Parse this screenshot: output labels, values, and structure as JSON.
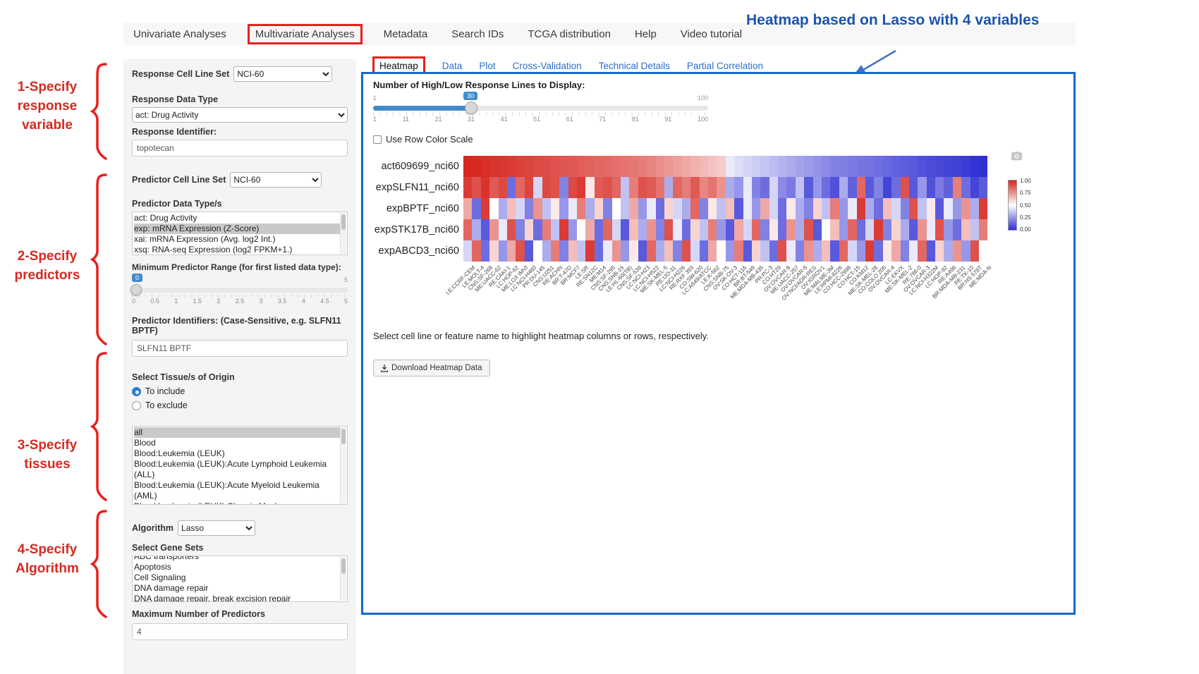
{
  "annotations": {
    "heatmap_note": "Heatmap based on Lasso with 4 variables",
    "step1": "1-Specify response variable",
    "step2": "2-Specify predictors",
    "step3": "3-Specify tissues",
    "step4": "4-Specify Algorithm"
  },
  "nav": {
    "tabs": [
      {
        "label": "Univariate Analyses",
        "highlighted": false
      },
      {
        "label": "Multivariate Analyses",
        "highlighted": true
      },
      {
        "label": "Metadata",
        "highlighted": false
      },
      {
        "label": "Search IDs",
        "highlighted": false
      },
      {
        "label": "TCGA distribution",
        "highlighted": false
      },
      {
        "label": "Help",
        "highlighted": false
      },
      {
        "label": "Video tutorial",
        "highlighted": false
      }
    ]
  },
  "sidebar": {
    "response_cell_line_set": {
      "label": "Response Cell Line Set",
      "value": "NCI-60"
    },
    "response_data_type": {
      "label": "Response Data Type",
      "value": "act: Drug Activity"
    },
    "response_identifier": {
      "label": "Response Identifier:",
      "value": "topotecan"
    },
    "predictor_cell_line_set": {
      "label": "Predictor Cell Line Set",
      "value": "NCI-60"
    },
    "predictor_data_types": {
      "label": "Predictor Data Type/s",
      "options": [
        "act: Drug Activity",
        "exp: mRNA Expression (Z-Score)",
        "xai: mRNA Expression (Avg. log2 Int.)",
        "xsq: RNA-seq Expression (log2 FPKM+1.)"
      ],
      "selected": "exp: mRNA Expression (Z-Score)"
    },
    "min_predictor_range": {
      "label": "Minimum Predictor Range (for first listed data type):",
      "value": "0",
      "max_label": "5",
      "ticks": [
        "0",
        "0.5",
        "1",
        "1.5",
        "2",
        "2.5",
        "3",
        "3.5",
        "4",
        "4.5",
        "5"
      ]
    },
    "predictor_identifiers": {
      "label": "Predictor Identifiers: (Case-Sensitive, e.g. SLFN11 BPTF)",
      "value": "SLFN11 BPTF"
    },
    "tissue_origin": {
      "label": "Select Tissue/s of Origin",
      "radios": [
        {
          "label": "To include",
          "checked": true
        },
        {
          "label": "To exclude",
          "checked": false
        }
      ],
      "options": [
        "all",
        "Blood",
        "Blood:Leukemia (LEUK)",
        "Blood:Leukemia (LEUK):Acute Lymphoid Leukemia (ALL)",
        "Blood:Leukemia (LEUK):Acute Myeloid Leukemia (AML)",
        "Blood:Leukemia (LEUK):Chronic Myelogenous Leukemia (CML)"
      ],
      "selected": "all"
    },
    "algorithm": {
      "label": "Algorithm",
      "value": "Lasso"
    },
    "gene_sets": {
      "label": "Select Gene Sets",
      "options": [
        "ABC transporters",
        "Apoptosis",
        "Cell Signaling",
        "DNA damage repair",
        "DNA damage repair, break excision repair"
      ]
    },
    "max_predictors": {
      "label": "Maximum Number of Predictors",
      "value": "4"
    }
  },
  "main": {
    "tabs": [
      {
        "label": "Heatmap",
        "active": true
      },
      {
        "label": "Data",
        "active": false
      },
      {
        "label": "Plot",
        "active": false
      },
      {
        "label": "Cross-Validation",
        "active": false
      },
      {
        "label": "Technical Details",
        "active": false
      },
      {
        "label": "Partial Correlation",
        "active": false
      }
    ],
    "lines_slider": {
      "label": "Number of High/Low Response Lines to Display:",
      "value": "30",
      "min_label": "1",
      "max_label": "100",
      "ticks": [
        "1",
        "11",
        "21",
        "31",
        "41",
        "51",
        "61",
        "71",
        "81",
        "91",
        "100"
      ]
    },
    "row_color_scale_label": "Use Row Color Scale",
    "hint": "Select cell line or feature name to highlight heatmap columns or rows, respectively.",
    "download_button": "Download Heatmap Data"
  },
  "chart_data": {
    "type": "heatmap",
    "rows": [
      "act609699_nci60",
      "expSLFN11_nci60",
      "expBPTF_nci60",
      "expSTK17B_nci60",
      "expABCD3_nci60"
    ],
    "columns": [
      "LE:CCRF-CEM",
      "LE:MOLT-4",
      "CNS:SF-268",
      "ME:UACC-62",
      "RE:CAKI-1",
      "LC:HOP-62",
      "ME:LOX IMVI",
      "LC:NCI-H460",
      "PR:DU-145",
      "CNS:U251",
      "RE:ACHN",
      "BR:T-47D",
      "BR:MCF7",
      "LE:SR",
      "RE:SN12C",
      "ME:M14",
      "CNS:SF-295",
      "CNS:SNB-19",
      "LE:HL-60(TB)",
      "CNS:SF-539",
      "LC:NCI-H23",
      "LC:NCI-H522",
      "ME:SK-MEL-5",
      "RE:UO-31",
      "LC:NCI-H226",
      "RE:RXF 393",
      "CO:SW-620",
      "LC:A549/ATCC",
      "LE:K-562",
      "CNS:SNB-75",
      "OV:SK-OV-3",
      "CO:HCT-116",
      "BR:BT-549",
      "ME:MDA-MB-435",
      "PR:PC-3",
      "CO:HT29",
      "OV:OVCAR-8",
      "ME:UACC-257",
      "OV:OVCAR-5",
      "OV:NCI/ADR-RES",
      "OV:IGROV1",
      "ME:MALME-3M",
      "LE:RPMI-8226",
      "CO:HCC-2998",
      "CO:HCT-15",
      "CO:KM12",
      "ME:SK-MEL-28",
      "CO:COLO 205",
      "OV:OVCAR-4",
      "LC:EKVX",
      "ME:SK-MEL-2",
      "RE:786-0",
      "OV:OVCAR-3",
      "LC:NCI-H322M",
      "LC:HOP-92",
      "RE:A498",
      "BR:MDA-MB-231",
      "RE:TK-10",
      "BR:HS 578T",
      "ME:MDA-N"
    ],
    "values": [
      [
        1.0,
        0.99,
        0.98,
        0.97,
        0.96,
        0.95,
        0.94,
        0.93,
        0.92,
        0.91,
        0.9,
        0.89,
        0.88,
        0.87,
        0.86,
        0.85,
        0.84,
        0.83,
        0.82,
        0.81,
        0.8,
        0.78,
        0.76,
        0.74,
        0.72,
        0.7,
        0.68,
        0.66,
        0.64,
        0.62,
        0.45,
        0.42,
        0.4,
        0.38,
        0.36,
        0.34,
        0.32,
        0.3,
        0.28,
        0.26,
        0.24,
        0.22,
        0.2,
        0.19,
        0.18,
        0.17,
        0.16,
        0.15,
        0.14,
        0.12,
        0.11,
        0.1,
        0.08,
        0.07,
        0.06,
        0.05,
        0.04,
        0.03,
        0.01,
        0.0
      ],
      [
        0.95,
        0.9,
        0.97,
        0.88,
        0.92,
        0.15,
        0.85,
        0.93,
        0.4,
        0.92,
        0.9,
        0.2,
        0.92,
        0.95,
        0.55,
        0.88,
        0.9,
        0.85,
        0.35,
        0.8,
        0.9,
        0.88,
        0.82,
        0.3,
        0.85,
        0.8,
        0.88,
        0.78,
        0.82,
        0.75,
        0.3,
        0.25,
        0.45,
        0.2,
        0.15,
        0.4,
        0.22,
        0.18,
        0.35,
        0.1,
        0.25,
        0.15,
        0.08,
        0.3,
        0.12,
        0.85,
        0.1,
        0.2,
        0.05,
        0.15,
        0.9,
        0.1,
        0.25,
        0.08,
        0.18,
        0.12,
        0.8,
        0.15,
        0.05,
        0.1
      ],
      [
        0.7,
        0.15,
        0.95,
        0.5,
        0.3,
        0.65,
        0.4,
        0.2,
        0.75,
        0.35,
        0.55,
        0.25,
        0.45,
        0.8,
        0.3,
        0.6,
        0.2,
        0.5,
        0.35,
        0.7,
        0.25,
        0.45,
        0.15,
        0.6,
        0.4,
        0.3,
        0.85,
        0.2,
        0.55,
        0.35,
        0.65,
        0.1,
        0.45,
        0.25,
        0.7,
        0.4,
        0.15,
        0.55,
        0.3,
        0.2,
        0.6,
        0.35,
        0.8,
        0.25,
        0.45,
        0.95,
        0.3,
        0.15,
        0.65,
        0.4,
        0.2,
        0.9,
        0.35,
        0.55,
        0.1,
        0.45,
        0.25,
        0.75,
        0.3,
        0.95
      ],
      [
        0.85,
        0.3,
        0.1,
        0.75,
        0.45,
        0.9,
        0.2,
        0.6,
        0.15,
        0.8,
        0.35,
        0.95,
        0.25,
        0.5,
        0.7,
        0.15,
        0.85,
        0.4,
        0.1,
        0.65,
        0.3,
        0.75,
        0.2,
        0.9,
        0.45,
        0.15,
        0.6,
        0.35,
        0.8,
        0.25,
        0.1,
        0.7,
        0.4,
        0.85,
        0.2,
        0.55,
        0.15,
        0.75,
        0.3,
        0.9,
        0.1,
        0.5,
        0.65,
        0.25,
        0.85,
        0.15,
        0.4,
        0.95,
        0.2,
        0.6,
        0.3,
        0.1,
        0.75,
        0.45,
        0.9,
        0.25,
        0.15,
        0.65,
        0.35,
        0.8
      ],
      [
        0.4,
        0.85,
        0.15,
        0.6,
        0.25,
        0.7,
        0.9,
        0.1,
        0.5,
        0.3,
        0.8,
        0.2,
        0.65,
        0.35,
        0.95,
        0.15,
        0.45,
        0.75,
        0.25,
        0.55,
        0.1,
        0.85,
        0.3,
        0.65,
        0.2,
        0.9,
        0.4,
        0.15,
        0.7,
        0.5,
        0.25,
        0.8,
        0.1,
        0.6,
        0.35,
        0.15,
        0.9,
        0.45,
        0.2,
        0.75,
        0.3,
        0.65,
        0.1,
        0.85,
        0.4,
        0.25,
        0.95,
        0.15,
        0.55,
        0.7,
        0.2,
        0.45,
        0.85,
        0.1,
        0.6,
        0.3,
        0.75,
        0.25,
        0.9,
        0.5
      ]
    ],
    "color_high": "#d6261f",
    "color_low": "#2f2fd2",
    "color_mid": "#ffffff",
    "legend_ticks": [
      "1.00",
      "0.75",
      "0.50",
      "0.25",
      "0.00"
    ]
  }
}
